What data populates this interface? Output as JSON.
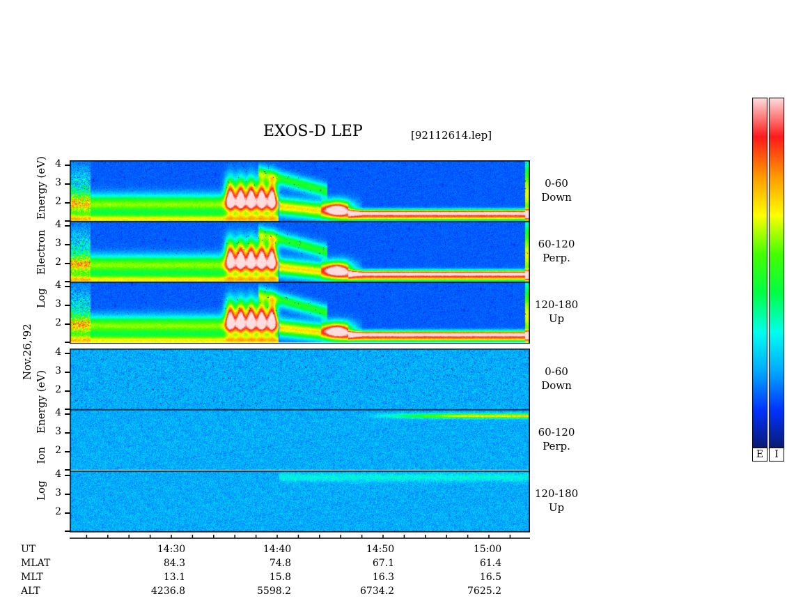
{
  "chart_data": {
    "type": "heatmap",
    "title": "EXOS-D LEP",
    "file_tag": "[92112614.lep]",
    "date_label": "Nov.26,'92",
    "groups": [
      {
        "ylabel_words": [
          "Log",
          "Electron",
          "Energy",
          "(eV)"
        ],
        "panels": [
          {
            "channel": "0-60",
            "direction": "Down",
            "yticks": [
              "4",
              "3",
              "2"
            ]
          },
          {
            "channel": "60-120",
            "direction": "Perp.",
            "yticks": [
              "4",
              "3",
              "2"
            ]
          },
          {
            "channel": "120-180",
            "direction": "Up",
            "yticks": [
              "4",
              "3",
              "2"
            ]
          }
        ]
      },
      {
        "ylabel_words": [
          "Log",
          "Ion",
          "Energy",
          "(eV)"
        ],
        "panels": [
          {
            "channel": "0-60",
            "direction": "Down",
            "yticks": [
              "4",
              "3",
              "2"
            ]
          },
          {
            "channel": "60-120",
            "direction": "Perp.",
            "yticks": [
              "4",
              "3",
              "2"
            ]
          },
          {
            "channel": "120-180",
            "direction": "Up",
            "yticks": [
              "4",
              "3",
              "2"
            ]
          }
        ]
      }
    ],
    "ylim": [
      1,
      4.2
    ],
    "x_ticks": [
      "14:30",
      "14:40",
      "14:50",
      "15:00"
    ],
    "table": {
      "rows": [
        {
          "label": "UT",
          "values": []
        },
        {
          "label": "MLAT",
          "values": [
            "84.3",
            "74.8",
            "67.1",
            "61.4"
          ]
        },
        {
          "label": "MLT",
          "values": [
            "13.1",
            "15.8",
            "16.3",
            "16.5"
          ]
        },
        {
          "label": "ALT",
          "values": [
            "4236.8",
            "5598.2",
            "6734.2",
            "7625.2"
          ]
        }
      ]
    },
    "colorbars": [
      {
        "label": "E"
      },
      {
        "label": "I"
      }
    ],
    "colormap": [
      "#0a1a6e",
      "#0033ff",
      "#00aaff",
      "#00ffee",
      "#00ff44",
      "#44ff00",
      "#ffff00",
      "#ff9900",
      "#ff1a1a",
      "#ffdddd"
    ]
  }
}
